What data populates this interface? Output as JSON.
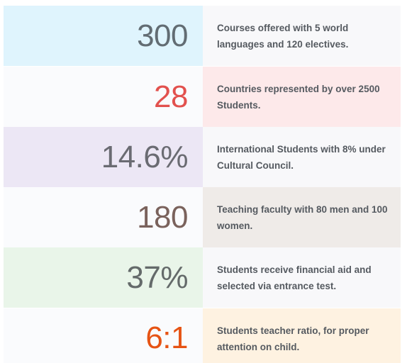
{
  "stats": [
    {
      "value": "300",
      "text": "Courses offered with 5 world languages and 120 electives.",
      "value_color": "#626c73",
      "left_bg": "#dff4fd",
      "right_bg": "#f8f8fa"
    },
    {
      "value": "28",
      "text": "Countries represented by over 2500 Students.",
      "value_color": "#e2514e",
      "left_bg": "#fafbfd",
      "right_bg": "#fde9ea"
    },
    {
      "value": "14.6%",
      "text": "International Students with 8% under Cultural Council.",
      "value_color": "#6a6b72",
      "left_bg": "#ece7f5",
      "right_bg": "#f8f8fa"
    },
    {
      "value": "180",
      "text": "Teaching faculty with 80 men and 100 women.",
      "value_color": "#7a625c",
      "left_bg": "#fafbfd",
      "right_bg": "#efebe8"
    },
    {
      "value": "37%",
      "text": "Students receive financial aid and selected via entrance test.",
      "value_color": "#646a6a",
      "left_bg": "#e9f5e9",
      "right_bg": "#f8f8fa"
    },
    {
      "value": "6:1",
      "text": "Students teacher ratio, for proper attention on child.",
      "value_color": "#e65314",
      "left_bg": "#fafbfd",
      "right_bg": "#fef2e1"
    }
  ]
}
